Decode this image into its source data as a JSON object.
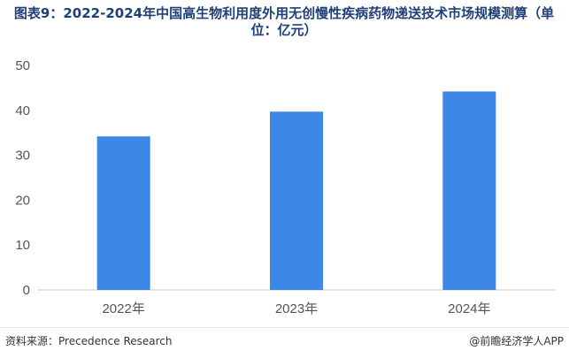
{
  "title": "图表9：2022-2024年中国高生物利用度外用无创慢性疾病药物递送技术市场规模测算（单位：亿元）",
  "source": "资料来源：Precedence Research",
  "brand": "@前瞻经济学人APP",
  "colors": {
    "bar": "#3d87e6",
    "axis": "#c8c8c8",
    "tick_text": "#555555",
    "title": "#1f3f77"
  },
  "chart_data": {
    "type": "bar",
    "categories": [
      "2022年",
      "2023年",
      "2024年"
    ],
    "values": [
      34.2,
      39.7,
      44.2
    ],
    "title": "图表9：2022-2024年中国高生物利用度外用无创慢性疾病药物递送技术市场规模测算（单位：亿元）",
    "xlabel": "",
    "ylabel": "",
    "ylim": [
      0,
      50
    ],
    "yticks": [
      0,
      10,
      20,
      30,
      40,
      50
    ],
    "grid": false,
    "legend": "none"
  }
}
